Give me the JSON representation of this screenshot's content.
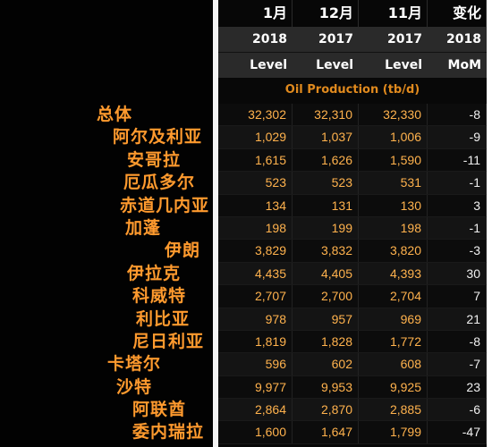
{
  "header": {
    "months": [
      "1月",
      "12月",
      "11月",
      "变化"
    ],
    "years": [
      "2018",
      "2017",
      "2017",
      "2018"
    ],
    "measures": [
      "Level",
      "Level",
      "Level",
      "MoM"
    ]
  },
  "subtitle": "Oil Production (tb/d)",
  "rows": [
    {
      "label": "总体",
      "jan": "32,302",
      "dec": "32,310",
      "nov": "32,330",
      "chg": "-8"
    },
    {
      "label": "阿尔及利亚",
      "jan": "1,029",
      "dec": "1,037",
      "nov": "1,006",
      "chg": "-9"
    },
    {
      "label": "安哥拉",
      "jan": "1,615",
      "dec": "1,626",
      "nov": "1,590",
      "chg": "-11"
    },
    {
      "label": "厄瓜多尔",
      "jan": "523",
      "dec": "523",
      "nov": "531",
      "chg": "-1"
    },
    {
      "label": "赤道几内亚",
      "jan": "134",
      "dec": "131",
      "nov": "130",
      "chg": "3"
    },
    {
      "label": "加蓬",
      "jan": "198",
      "dec": "199",
      "nov": "198",
      "chg": "-1"
    },
    {
      "label": "伊朗",
      "jan": "3,829",
      "dec": "3,832",
      "nov": "3,820",
      "chg": "-3"
    },
    {
      "label": "伊拉克",
      "jan": "4,435",
      "dec": "4,405",
      "nov": "4,393",
      "chg": "30"
    },
    {
      "label": "科威特",
      "jan": "2,707",
      "dec": "2,700",
      "nov": "2,704",
      "chg": "7"
    },
    {
      "label": "利比亚",
      "jan": "978",
      "dec": "957",
      "nov": "969",
      "chg": "21"
    },
    {
      "label": "尼日利亚",
      "jan": "1,819",
      "dec": "1,828",
      "nov": "1,772",
      "chg": "-8"
    },
    {
      "label": "卡塔尔",
      "jan": "596",
      "dec": "602",
      "nov": "608",
      "chg": "-7"
    },
    {
      "label": "沙特",
      "jan": "9,977",
      "dec": "9,953",
      "nov": "9,925",
      "chg": "23"
    },
    {
      "label": "阿联酋",
      "jan": "2,864",
      "dec": "2,870",
      "nov": "2,885",
      "chg": "-6"
    },
    {
      "label": "委内瑞拉",
      "jan": "1,600",
      "dec": "1,647",
      "nov": "1,799",
      "chg": "-47"
    }
  ]
}
